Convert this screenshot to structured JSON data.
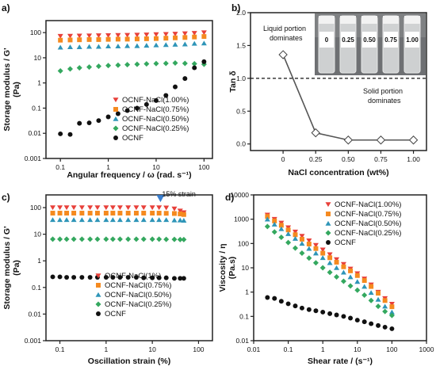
{
  "colors": {
    "nacl_100": "#e8403a",
    "nacl_075": "#f58a1f",
    "nacl_050": "#2e95b8",
    "nacl_025": "#34a85f",
    "ocnf": "#111111",
    "line": "#555555",
    "arrow": "#3a7fd0"
  },
  "chart_data": [
    {
      "panel": "a)",
      "type": "scatter",
      "xscale": "log",
      "yscale": "log",
      "xlim": [
        0.05,
        150
      ],
      "ylim": [
        0.001,
        300
      ],
      "xticks": [
        "0.1",
        "1",
        "10",
        "100"
      ],
      "yticks": [
        "0.001",
        "0.01",
        "0.1",
        "1",
        "10",
        "100"
      ],
      "xlabel": "Angular frequency / ω (rad. s⁻¹)",
      "ylabel": "Storage modulus / G'",
      "yunit": "(Pa)",
      "legend": [
        "OCNF-NaCl(1.00%)",
        "OCNF-NaCl(0.75%)",
        "OCNF-NaCl(0.50%)",
        "OCNF-NaCl(0.25%)",
        "OCNF"
      ],
      "series": [
        {
          "name": "OCNF-NaCl(1.00%)",
          "marker": "triangle-down",
          "color": "#e8403a",
          "x": [
            0.1,
            0.16,
            0.25,
            0.4,
            0.63,
            1,
            1.6,
            2.5,
            4,
            6.3,
            10,
            16,
            25,
            40,
            63,
            100
          ],
          "y": [
            72,
            73,
            74,
            75,
            76,
            77,
            78,
            79,
            80,
            82,
            84,
            86,
            88,
            91,
            95,
            100
          ]
        },
        {
          "name": "OCNF-NaCl(0.75%)",
          "marker": "square",
          "color": "#f58a1f",
          "x": [
            0.1,
            0.16,
            0.25,
            0.4,
            0.63,
            1,
            1.6,
            2.5,
            4,
            6.3,
            10,
            16,
            25,
            40,
            63,
            100
          ],
          "y": [
            50,
            51,
            52,
            53,
            53,
            54,
            55,
            55,
            56,
            57,
            58,
            60,
            62,
            64,
            67,
            70
          ]
        },
        {
          "name": "OCNF-NaCl(0.50%)",
          "marker": "triangle-up",
          "color": "#2e95b8",
          "x": [
            0.1,
            0.16,
            0.25,
            0.4,
            0.63,
            1,
            1.6,
            2.5,
            4,
            6.3,
            10,
            16,
            25,
            40,
            63,
            100
          ],
          "y": [
            26,
            27,
            27,
            28,
            28,
            29,
            29,
            30,
            30,
            31,
            32,
            33,
            34,
            35,
            37,
            38
          ]
        },
        {
          "name": "OCNF-NaCl(0.25%)",
          "marker": "diamond",
          "color": "#34a85f",
          "x": [
            0.1,
            0.16,
            0.25,
            0.4,
            0.63,
            1,
            1.6,
            2.5,
            4,
            6.3,
            10,
            16,
            25,
            40,
            63,
            100
          ],
          "y": [
            3.0,
            3.6,
            4.0,
            4.3,
            4.6,
            4.9,
            5.1,
            5.3,
            5.5,
            5.7,
            5.9,
            6.0,
            6.2,
            6.0,
            5.8,
            5.5
          ]
        },
        {
          "name": "OCNF",
          "marker": "circle",
          "color": "#111111",
          "x": [
            0.1,
            0.16,
            0.25,
            0.4,
            0.63,
            1,
            1.6,
            2.5,
            4,
            6.3,
            10,
            16,
            25,
            40,
            63,
            100
          ],
          "y": [
            0.0095,
            0.009,
            0.025,
            0.026,
            0.032,
            0.045,
            0.06,
            0.08,
            0.1,
            0.14,
            0.2,
            0.32,
            0.7,
            1.5,
            4.0,
            7.0
          ]
        }
      ]
    },
    {
      "panel": "b)",
      "type": "line",
      "xlim": [
        -0.25,
        1.1
      ],
      "ylim": [
        -0.1,
        2.0
      ],
      "xticks": [
        "0",
        "0.25",
        "0.50",
        "0.75",
        "1.00"
      ],
      "yticks": [
        "0.0",
        "0.5",
        "1.0",
        "1.5",
        "2.0"
      ],
      "xlabel": "NaCl concentration (wt%)",
      "ylabel": "Tan δ",
      "reference_line": 1.0,
      "annotations": [
        "Liquid portion dominates",
        "Solid portion dominates"
      ],
      "vial_labels": [
        "0",
        "0.25",
        "0.50",
        "0.75",
        "1.00"
      ],
      "series": [
        {
          "marker": "diamond-open",
          "x": [
            0,
            0.25,
            0.5,
            0.75,
            1.0
          ],
          "y": [
            1.36,
            0.17,
            0.06,
            0.06,
            0.06
          ]
        }
      ]
    },
    {
      "panel": "c)",
      "type": "scatter",
      "xscale": "log",
      "yscale": "log",
      "xlim": [
        0.05,
        200
      ],
      "ylim": [
        0.001,
        300
      ],
      "xticks": [
        "0.1",
        "1",
        "10",
        "100"
      ],
      "yticks": [
        "0.001",
        "0.01",
        "0.1",
        "1",
        "10",
        "100"
      ],
      "xlabel": "Oscillation strain (%)",
      "ylabel": "Storage modulus / G'",
      "yunit": "(Pa)",
      "annotation": "15% strain",
      "legend": [
        "OCNF-NaCl(1%)",
        "OCNF-NaCl(0.75%)",
        "OCNF-NaCl(0.50%)",
        "OCNF-NaCl(0.25%)",
        "OCNF"
      ],
      "series": [
        {
          "name": "OCNF-NaCl(1%)",
          "marker": "triangle-down",
          "color": "#e8403a",
          "x": [
            0.07,
            0.1,
            0.14,
            0.2,
            0.3,
            0.45,
            0.65,
            1,
            1.4,
            2,
            3,
            4.5,
            6.5,
            10,
            14,
            20,
            30,
            40,
            48
          ],
          "y": [
            100,
            100,
            100,
            100,
            100,
            100,
            100,
            100,
            100,
            100,
            100,
            100,
            100,
            100,
            100,
            98,
            90,
            75,
            65
          ]
        },
        {
          "name": "OCNF-NaCl(0.75%)",
          "marker": "square",
          "color": "#f58a1f",
          "x": [
            0.07,
            0.1,
            0.14,
            0.2,
            0.3,
            0.45,
            0.65,
            1,
            1.4,
            2,
            3,
            4.5,
            6.5,
            10,
            14,
            20,
            30,
            40,
            48
          ],
          "y": [
            62,
            62,
            62,
            62,
            62,
            62,
            62,
            62,
            62,
            62,
            62,
            62,
            62,
            62,
            62,
            61,
            60,
            58,
            55
          ]
        },
        {
          "name": "OCNF-NaCl(0.50%)",
          "marker": "triangle-up",
          "color": "#2e95b8",
          "x": [
            0.07,
            0.1,
            0.14,
            0.2,
            0.3,
            0.45,
            0.65,
            1,
            1.4,
            2,
            3,
            4.5,
            6.5,
            10,
            14,
            20,
            30,
            40,
            48
          ],
          "y": [
            35,
            35,
            35,
            35,
            35,
            35,
            35,
            35,
            35,
            35,
            35,
            35,
            35,
            35,
            35,
            35,
            34,
            34,
            33
          ]
        },
        {
          "name": "OCNF-NaCl(0.25%)",
          "marker": "diamond",
          "color": "#34a85f",
          "x": [
            0.07,
            0.1,
            0.14,
            0.2,
            0.3,
            0.45,
            0.65,
            1,
            1.4,
            2,
            3,
            4.5,
            6.5,
            10,
            14,
            20,
            30,
            40,
            48
          ],
          "y": [
            6.5,
            6.5,
            6.5,
            6.5,
            6.5,
            6.5,
            6.5,
            6.5,
            6.5,
            6.5,
            6.5,
            6.5,
            6.5,
            6.5,
            6.5,
            6.4,
            6.4,
            6.3,
            6.3
          ]
        },
        {
          "name": "OCNF",
          "marker": "circle",
          "color": "#111111",
          "x": [
            0.07,
            0.1,
            0.14,
            0.2,
            0.3,
            0.45,
            0.65,
            1,
            1.4,
            2,
            3,
            4.5,
            6.5,
            10,
            14,
            20,
            30,
            40,
            48
          ],
          "y": [
            0.25,
            0.25,
            0.24,
            0.24,
            0.24,
            0.24,
            0.24,
            0.24,
            0.24,
            0.24,
            0.24,
            0.24,
            0.23,
            0.23,
            0.23,
            0.23,
            0.22,
            0.22,
            0.22
          ]
        }
      ]
    },
    {
      "panel": "d)",
      "type": "scatter",
      "xscale": "log",
      "yscale": "log",
      "xlim": [
        0.01,
        1000
      ],
      "ylim": [
        0.01,
        10000
      ],
      "xticks": [
        "0.01",
        "0.1",
        "1",
        "10",
        "100",
        "1000"
      ],
      "yticks": [
        "0.01",
        "0.1",
        "1",
        "10",
        "100",
        "1000",
        "10000"
      ],
      "xlabel": "Shear rate / (s⁻¹)",
      "ylabel": "Viscosity / η",
      "yunit": "(Pa.s)",
      "legend": [
        "OCNF-NaCl(1.00%)",
        "OCNF-NaCl(0.75%)",
        "OCNF-NaCl(0.50%)",
        "OCNF-NaCl(0.25%)",
        "OCNF"
      ],
      "series": [
        {
          "name": "OCNF-NaCl(1.00%)",
          "marker": "triangle-down",
          "color": "#e8403a",
          "x": [
            0.025,
            0.04,
            0.063,
            0.1,
            0.16,
            0.25,
            0.4,
            0.63,
            1,
            1.6,
            2.5,
            4,
            6.3,
            10,
            16,
            25,
            40,
            63,
            100
          ],
          "y": [
            1500,
            1000,
            700,
            450,
            300,
            200,
            130,
            85,
            55,
            35,
            22,
            14,
            9,
            5.8,
            3.5,
            2.0,
            1.0,
            0.55,
            0.32
          ]
        },
        {
          "name": "OCNF-NaCl(0.75%)",
          "marker": "square",
          "color": "#f58a1f",
          "x": [
            0.025,
            0.04,
            0.063,
            0.1,
            0.16,
            0.25,
            0.4,
            0.63,
            1,
            1.6,
            2.5,
            4,
            6.3,
            10,
            16,
            25,
            40,
            63,
            100
          ],
          "y": [
            1300,
            850,
            560,
            360,
            230,
            150,
            95,
            62,
            40,
            26,
            17,
            11,
            7.5,
            4.8,
            3.0,
            1.7,
            0.9,
            0.45,
            0.25
          ]
        },
        {
          "name": "OCNF-NaCl(0.50%)",
          "marker": "triangle-up",
          "color": "#2e95b8",
          "x": [
            0.025,
            0.04,
            0.063,
            0.1,
            0.16,
            0.25,
            0.4,
            0.63,
            1,
            1.6,
            2.5,
            4,
            6.3,
            10,
            16,
            25,
            40,
            63,
            100
          ],
          "y": [
            1000,
            620,
            400,
            250,
            160,
            100,
            62,
            40,
            26,
            16,
            10,
            6.5,
            4.2,
            2.7,
            1.7,
            0.95,
            0.5,
            0.26,
            0.15
          ]
        },
        {
          "name": "OCNF-NaCl(0.25%)",
          "marker": "diamond",
          "color": "#34a85f",
          "x": [
            0.025,
            0.04,
            0.063,
            0.1,
            0.16,
            0.25,
            0.4,
            0.63,
            1,
            1.6,
            2.5,
            4,
            6.3,
            10,
            16,
            25,
            40,
            63,
            100
          ],
          "y": [
            500,
            300,
            180,
            110,
            65,
            40,
            25,
            16,
            10,
            6.5,
            4.2,
            2.8,
            1.8,
            1.2,
            0.75,
            0.45,
            0.26,
            0.16,
            0.11
          ]
        },
        {
          "name": "OCNF",
          "marker": "circle",
          "color": "#111111",
          "x": [
            0.025,
            0.04,
            0.063,
            0.1,
            0.16,
            0.25,
            0.4,
            0.63,
            1,
            1.6,
            2.5,
            4,
            6.3,
            10,
            16,
            25,
            40,
            63,
            100
          ],
          "y": [
            0.6,
            0.55,
            0.42,
            0.33,
            0.27,
            0.22,
            0.19,
            0.17,
            0.15,
            0.13,
            0.115,
            0.1,
            0.085,
            0.07,
            0.06,
            0.05,
            0.042,
            0.036,
            0.031
          ]
        }
      ]
    }
  ]
}
